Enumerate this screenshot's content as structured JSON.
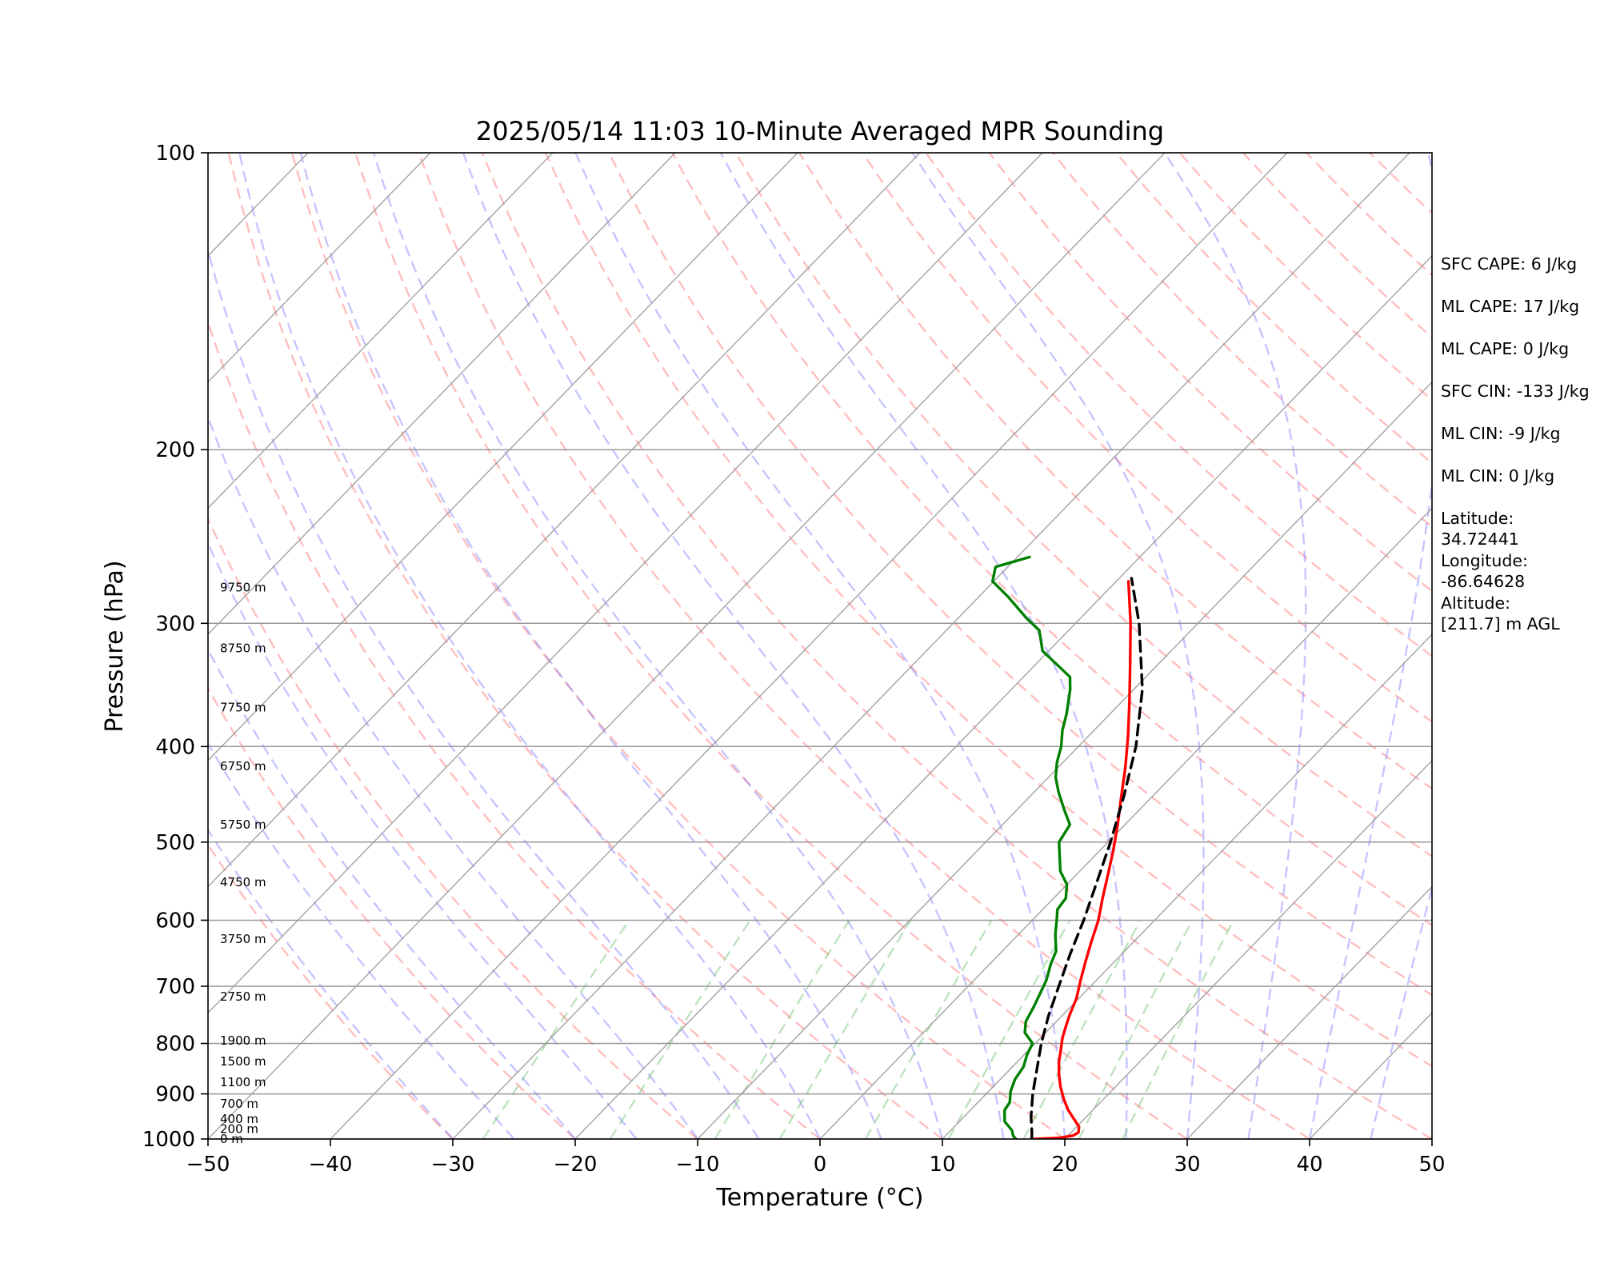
{
  "chart_data": {
    "type": "skew-t",
    "title": "2025/05/14 11:03 10-Minute Averaged MPR Sounding",
    "xlabel": "Temperature (°C)",
    "ylabel": "Pressure (hPa)",
    "xlim": [
      -50,
      50
    ],
    "ylim": [
      1000,
      100
    ],
    "y_scale": "log",
    "x_ticks": [
      -50,
      -40,
      -30,
      -20,
      -10,
      0,
      10,
      20,
      30,
      40,
      50
    ],
    "x_tick_labels": [
      "−50",
      "−40",
      "−30",
      "−20",
      "−10",
      "0",
      "10",
      "20",
      "30",
      "40",
      "50"
    ],
    "y_ticks": [
      100,
      200,
      300,
      400,
      500,
      600,
      700,
      800,
      900,
      1000
    ],
    "y_tick_labels": [
      "100",
      "200",
      "300",
      "400",
      "500",
      "600",
      "700",
      "800",
      "900",
      "1000"
    ],
    "grid": true,
    "background_lines": {
      "isotherms_color": "#999999",
      "dry_adiabats_color": "#ff6f6f",
      "moist_adiabats_color": "#6e6eff",
      "mixing_ratio_color": "#6fbf6f"
    },
    "series": [
      {
        "color": "#ff0000",
        "style": "solid",
        "points": [
          [
            1000,
            17.5
          ],
          [
            997,
            19.5
          ],
          [
            992,
            20.4
          ],
          [
            985,
            20.6
          ],
          [
            972,
            20.2
          ],
          [
            955,
            19.2
          ],
          [
            935,
            18
          ],
          [
            912,
            16.8
          ],
          [
            885,
            15.5
          ],
          [
            860,
            14.4
          ],
          [
            835,
            13.4
          ],
          [
            812,
            12.6
          ],
          [
            790,
            11.8
          ],
          [
            770,
            11.2
          ],
          [
            750,
            10.6
          ],
          [
            720,
            9.8
          ],
          [
            690,
            8.7
          ],
          [
            660,
            7.6
          ],
          [
            630,
            6.5
          ],
          [
            600,
            5.4
          ],
          [
            570,
            4
          ],
          [
            540,
            2.6
          ],
          [
            510,
            1.1
          ],
          [
            480,
            -0.6
          ],
          [
            450,
            -2.5
          ],
          [
            420,
            -4.5
          ],
          [
            390,
            -6.8
          ],
          [
            360,
            -9.4
          ],
          [
            330,
            -12.3
          ],
          [
            300,
            -15.5
          ],
          [
            272,
            -19
          ]
        ]
      },
      {
        "color": "#008000",
        "style": "solid",
        "points": [
          [
            1000,
            16
          ],
          [
            992,
            15.5
          ],
          [
            980,
            15
          ],
          [
            960,
            13.7
          ],
          [
            935,
            12.8
          ],
          [
            918,
            12.6
          ],
          [
            895,
            11.8
          ],
          [
            870,
            11.2
          ],
          [
            845,
            10.9
          ],
          [
            820,
            10.2
          ],
          [
            800,
            9.8
          ],
          [
            780,
            8.3
          ],
          [
            760,
            7.5
          ],
          [
            735,
            7
          ],
          [
            710,
            6.4
          ],
          [
            690,
            5.9
          ],
          [
            665,
            5
          ],
          [
            645,
            4.4
          ],
          [
            620,
            3
          ],
          [
            600,
            2
          ],
          [
            585,
            1.2
          ],
          [
            570,
            1
          ],
          [
            552,
            0
          ],
          [
            535,
            -1.6
          ],
          [
            500,
            -4
          ],
          [
            480,
            -4.5
          ],
          [
            465,
            -6
          ],
          [
            445,
            -8
          ],
          [
            430,
            -9.4
          ],
          [
            415,
            -10.5
          ],
          [
            400,
            -11.4
          ],
          [
            385,
            -12.6
          ],
          [
            370,
            -13.6
          ],
          [
            350,
            -15.2
          ],
          [
            340,
            -16.2
          ],
          [
            320,
            -20.5
          ],
          [
            305,
            -22.4
          ],
          [
            296,
            -24.5
          ],
          [
            282,
            -27.6
          ],
          [
            272,
            -30.1
          ],
          [
            263,
            -31
          ],
          [
            257,
            -29
          ]
        ]
      },
      {
        "color": "#000000",
        "style": "dashed",
        "points": [
          [
            1000,
            17.3
          ],
          [
            985,
            16.8
          ],
          [
            950,
            15.5
          ],
          [
            900,
            13.8
          ],
          [
            850,
            12.2
          ],
          [
            800,
            10.5
          ],
          [
            750,
            8.9
          ],
          [
            700,
            7.4
          ],
          [
            650,
            5.8
          ],
          [
            600,
            4.2
          ],
          [
            550,
            2.3
          ],
          [
            500,
            0.2
          ],
          [
            450,
            -2.3
          ],
          [
            400,
            -5.3
          ],
          [
            350,
            -9.3
          ],
          [
            300,
            -14.8
          ],
          [
            270,
            -19
          ]
        ]
      }
    ],
    "height_labels": [
      {
        "p": 1000,
        "text": "0 m"
      },
      {
        "p": 977,
        "text": "200 m"
      },
      {
        "p": 954,
        "text": "400 m"
      },
      {
        "p": 921,
        "text": "700 m"
      },
      {
        "p": 876,
        "text": "1100 m"
      },
      {
        "p": 834,
        "text": "1500 m"
      },
      {
        "p": 795,
        "text": "1900 m"
      },
      {
        "p": 717,
        "text": "2750 m"
      },
      {
        "p": 627,
        "text": "3750 m"
      },
      {
        "p": 549,
        "text": "4750 m"
      },
      {
        "p": 480,
        "text": "5750 m"
      },
      {
        "p": 419,
        "text": "6750 m"
      },
      {
        "p": 365,
        "text": "7750 m"
      },
      {
        "p": 318,
        "text": "8750 m"
      },
      {
        "p": 276,
        "text": "9750 m"
      }
    ],
    "annotations": [
      [
        "SFC CAPE: 6 J/kg"
      ],
      [
        "ML CAPE: 17 J/kg"
      ],
      [
        "ML CAPE: 0 J/kg"
      ],
      [
        "SFC CIN: -133 J/kg"
      ],
      [
        "ML CIN: -9 J/kg"
      ],
      [
        "ML CIN: 0 J/kg"
      ],
      [
        "Latitude:",
        "34.72441"
      ],
      [
        "Longitude:",
        "-86.64628"
      ],
      [
        "Altitude:",
        "[211.7] m AGL"
      ]
    ]
  }
}
